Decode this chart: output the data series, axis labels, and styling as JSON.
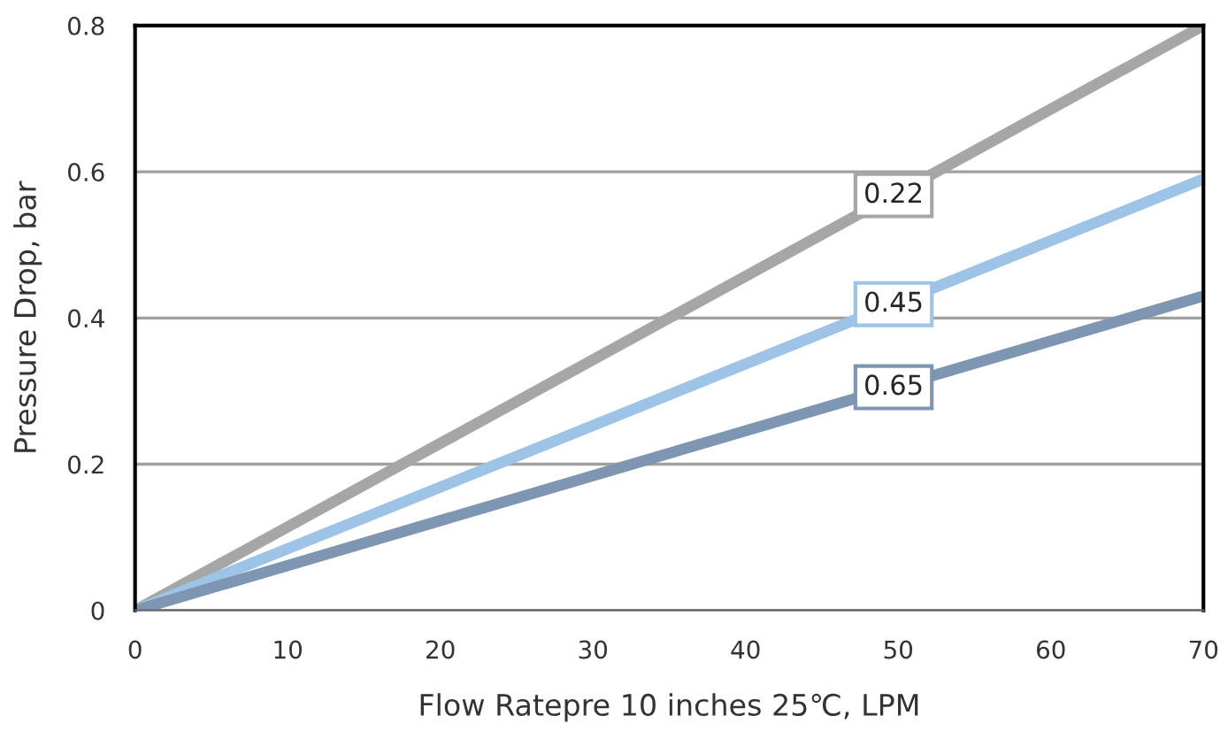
{
  "chart_data": {
    "type": "line",
    "xlabel": "Flow Ratepre 10 inches 25℃, LPM",
    "ylabel": "Pressure Drop, bar",
    "x": [
      0,
      70
    ],
    "series": [
      {
        "name": "0.22",
        "color": "#a6a6a6",
        "values": [
          0,
          0.8
        ]
      },
      {
        "name": "0.45",
        "color": "#9dc3e6",
        "values": [
          0,
          0.59
        ]
      },
      {
        "name": "0.65",
        "color": "#7f96b2",
        "values": [
          0,
          0.43
        ]
      }
    ],
    "xlim": [
      0,
      70
    ],
    "xticks": [
      0,
      10,
      20,
      30,
      40,
      50,
      60,
      70
    ],
    "ylim": [
      0,
      0.8
    ],
    "yticks": [
      0,
      0.2,
      0.4,
      0.6,
      0.8
    ],
    "grid": "y",
    "legend": false,
    "marker": "none",
    "line_style": "solid"
  }
}
